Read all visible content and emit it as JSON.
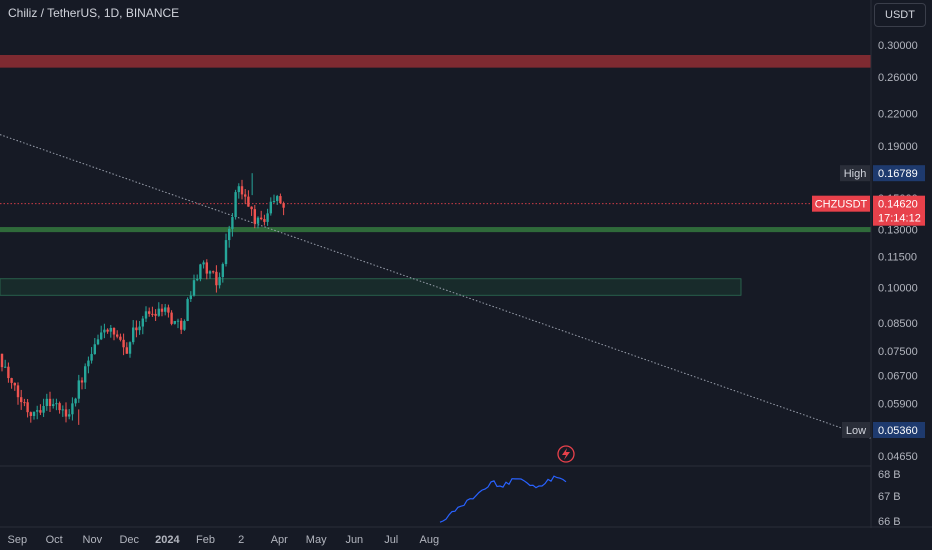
{
  "header": {
    "title": "Chiliz / TetherUS, 1D, BINANCE"
  },
  "currency_button": "USDT",
  "colors": {
    "background": "#161a25",
    "up": "#26a69a",
    "down": "#ef5350",
    "resistance_zone": "#7e2a31",
    "support_line": "#2f6a3a",
    "volume_line": "#2962ff",
    "high_low_tag": "#1e3a6e",
    "price_tag": "#e8414b"
  },
  "price_axis": {
    "ticks": [
      "0.30000",
      "0.26000",
      "0.22000",
      "0.19000",
      "0.15000",
      "0.13000",
      "0.11500",
      "0.10000",
      "0.08500",
      "0.07500",
      "0.06700",
      "0.05900",
      "0.05200",
      "0.04650"
    ]
  },
  "volume_axis": {
    "ticks": [
      "68 B",
      "67 B",
      "66 B"
    ]
  },
  "time_axis": {
    "labels": [
      "Sep",
      "Oct",
      "Nov",
      "Dec",
      "2024",
      "Feb",
      "2",
      "Apr",
      "May",
      "Jun",
      "Jul",
      "Aug"
    ]
  },
  "markers": {
    "high_label": "High",
    "high_value": "0.16789",
    "low_label": "Low",
    "low_value": "0.05360",
    "symbol": "CHZUSDT",
    "last_price": "0.14620",
    "countdown": "17:14:12"
  },
  "chart_data": {
    "type": "candlestick",
    "symbol": "CHZUSDT",
    "title": "Chiliz / TetherUS, 1D, BINANCE",
    "y_scale": "log",
    "ylim": [
      0.0455,
      0.31
    ],
    "x": [
      "2023-08-22",
      "2023-09-01",
      "2023-09-15",
      "2023-10-01",
      "2023-10-15",
      "2023-11-01",
      "2023-11-15",
      "2023-12-01",
      "2023-12-15",
      "2024-01-01",
      "2024-01-15",
      "2024-02-01",
      "2024-02-15",
      "2024-03-02",
      "2024-03-10",
      "2024-03-20",
      "2024-04-01",
      "2024-04-10"
    ],
    "close": [
      0.074,
      0.063,
      0.057,
      0.06,
      0.056,
      0.07,
      0.084,
      0.075,
      0.087,
      0.092,
      0.083,
      0.112,
      0.101,
      0.158,
      0.146,
      0.132,
      0.15,
      0.1462
    ],
    "high_price": 0.16789,
    "low_price": 0.0536,
    "last_price": 0.1462,
    "zones": [
      {
        "type": "resistance",
        "price_from": 0.271,
        "price_to": 0.287
      },
      {
        "type": "support",
        "price_from": 0.1285,
        "price_to": 0.1315
      },
      {
        "type": "demand",
        "price_from": 0.0965,
        "price_to": 0.104
      }
    ],
    "trendline": {
      "from": [
        "2023-08-22",
        0.2
      ],
      "to": [
        "2024-08-28",
        0.097
      ]
    },
    "volume_ticks": [
      "68 B",
      "67 B",
      "66 B"
    ]
  }
}
